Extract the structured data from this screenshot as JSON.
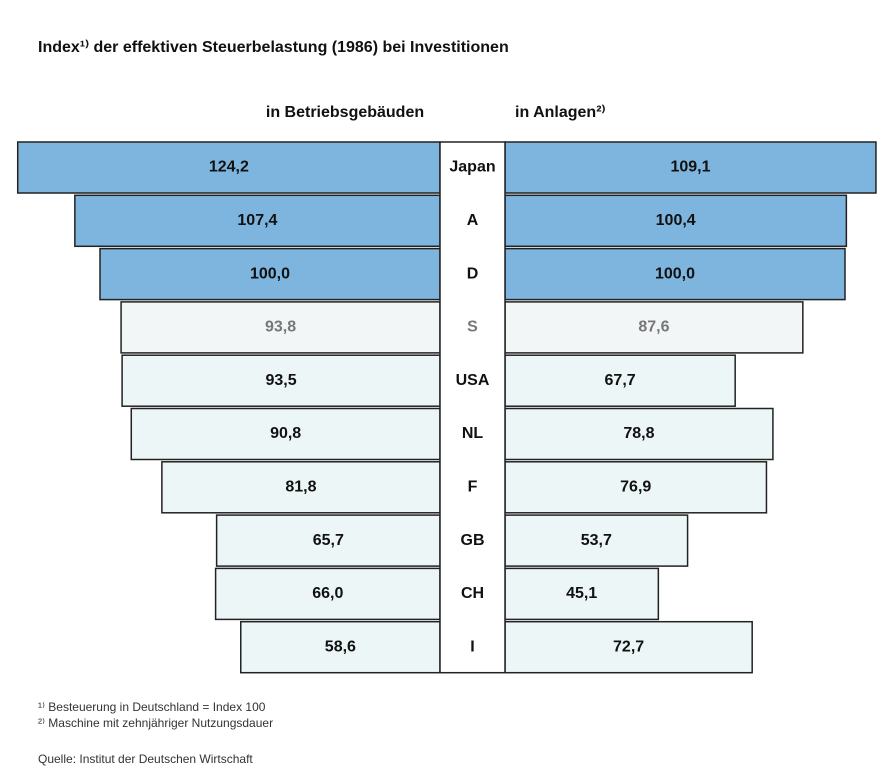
{
  "chart_data": {
    "type": "butterfly",
    "title": "Index¹⁾ der effektiven Steuerbelastung (1986) bei Investitionen",
    "categories": [
      "Japan",
      "A",
      "D",
      "S",
      "USA",
      "NL",
      "F",
      "GB",
      "CH",
      "I"
    ],
    "series": [
      {
        "name": "in Betriebsgebäuden",
        "values": [
          124.2,
          107.4,
          100.0,
          93.8,
          93.5,
          90.8,
          81.8,
          65.7,
          66.0,
          58.6
        ],
        "value_labels": [
          "124,2",
          "107,4",
          "100,0",
          "93,8",
          "93,5",
          "90,8",
          "81,8",
          "65,7",
          "66,0",
          "58,6"
        ]
      },
      {
        "name": "in Anlagen²⁾",
        "values": [
          109.1,
          100.4,
          100.0,
          87.6,
          67.7,
          78.8,
          76.9,
          53.7,
          45.1,
          72.7
        ],
        "value_labels": [
          "109,1",
          "100,4",
          "100,0",
          "87,6",
          "67,7",
          "78,8",
          "76,9",
          "53,7",
          "45,1",
          "72,7"
        ]
      }
    ],
    "bar_colors": [
      "#7db5de",
      "#7db5de",
      "#7db5de",
      "#f3f6f6",
      "#edf6f6",
      "#edf6f6",
      "#edf6f6",
      "#edf6f6",
      "#edf6f6",
      "#edf6f6"
    ],
    "label_colors": [
      "#111",
      "#111",
      "#111",
      "#777",
      "#111",
      "#111",
      "#111",
      "#111",
      "#111",
      "#111"
    ],
    "footnotes": [
      "¹⁾ Besteuerung in Deutschland = Index 100",
      "²⁾ Maschine mit zehnjähriger Nutzungsdauer"
    ],
    "source": "Quelle: Institut der Deutschen Wirtschaft"
  }
}
